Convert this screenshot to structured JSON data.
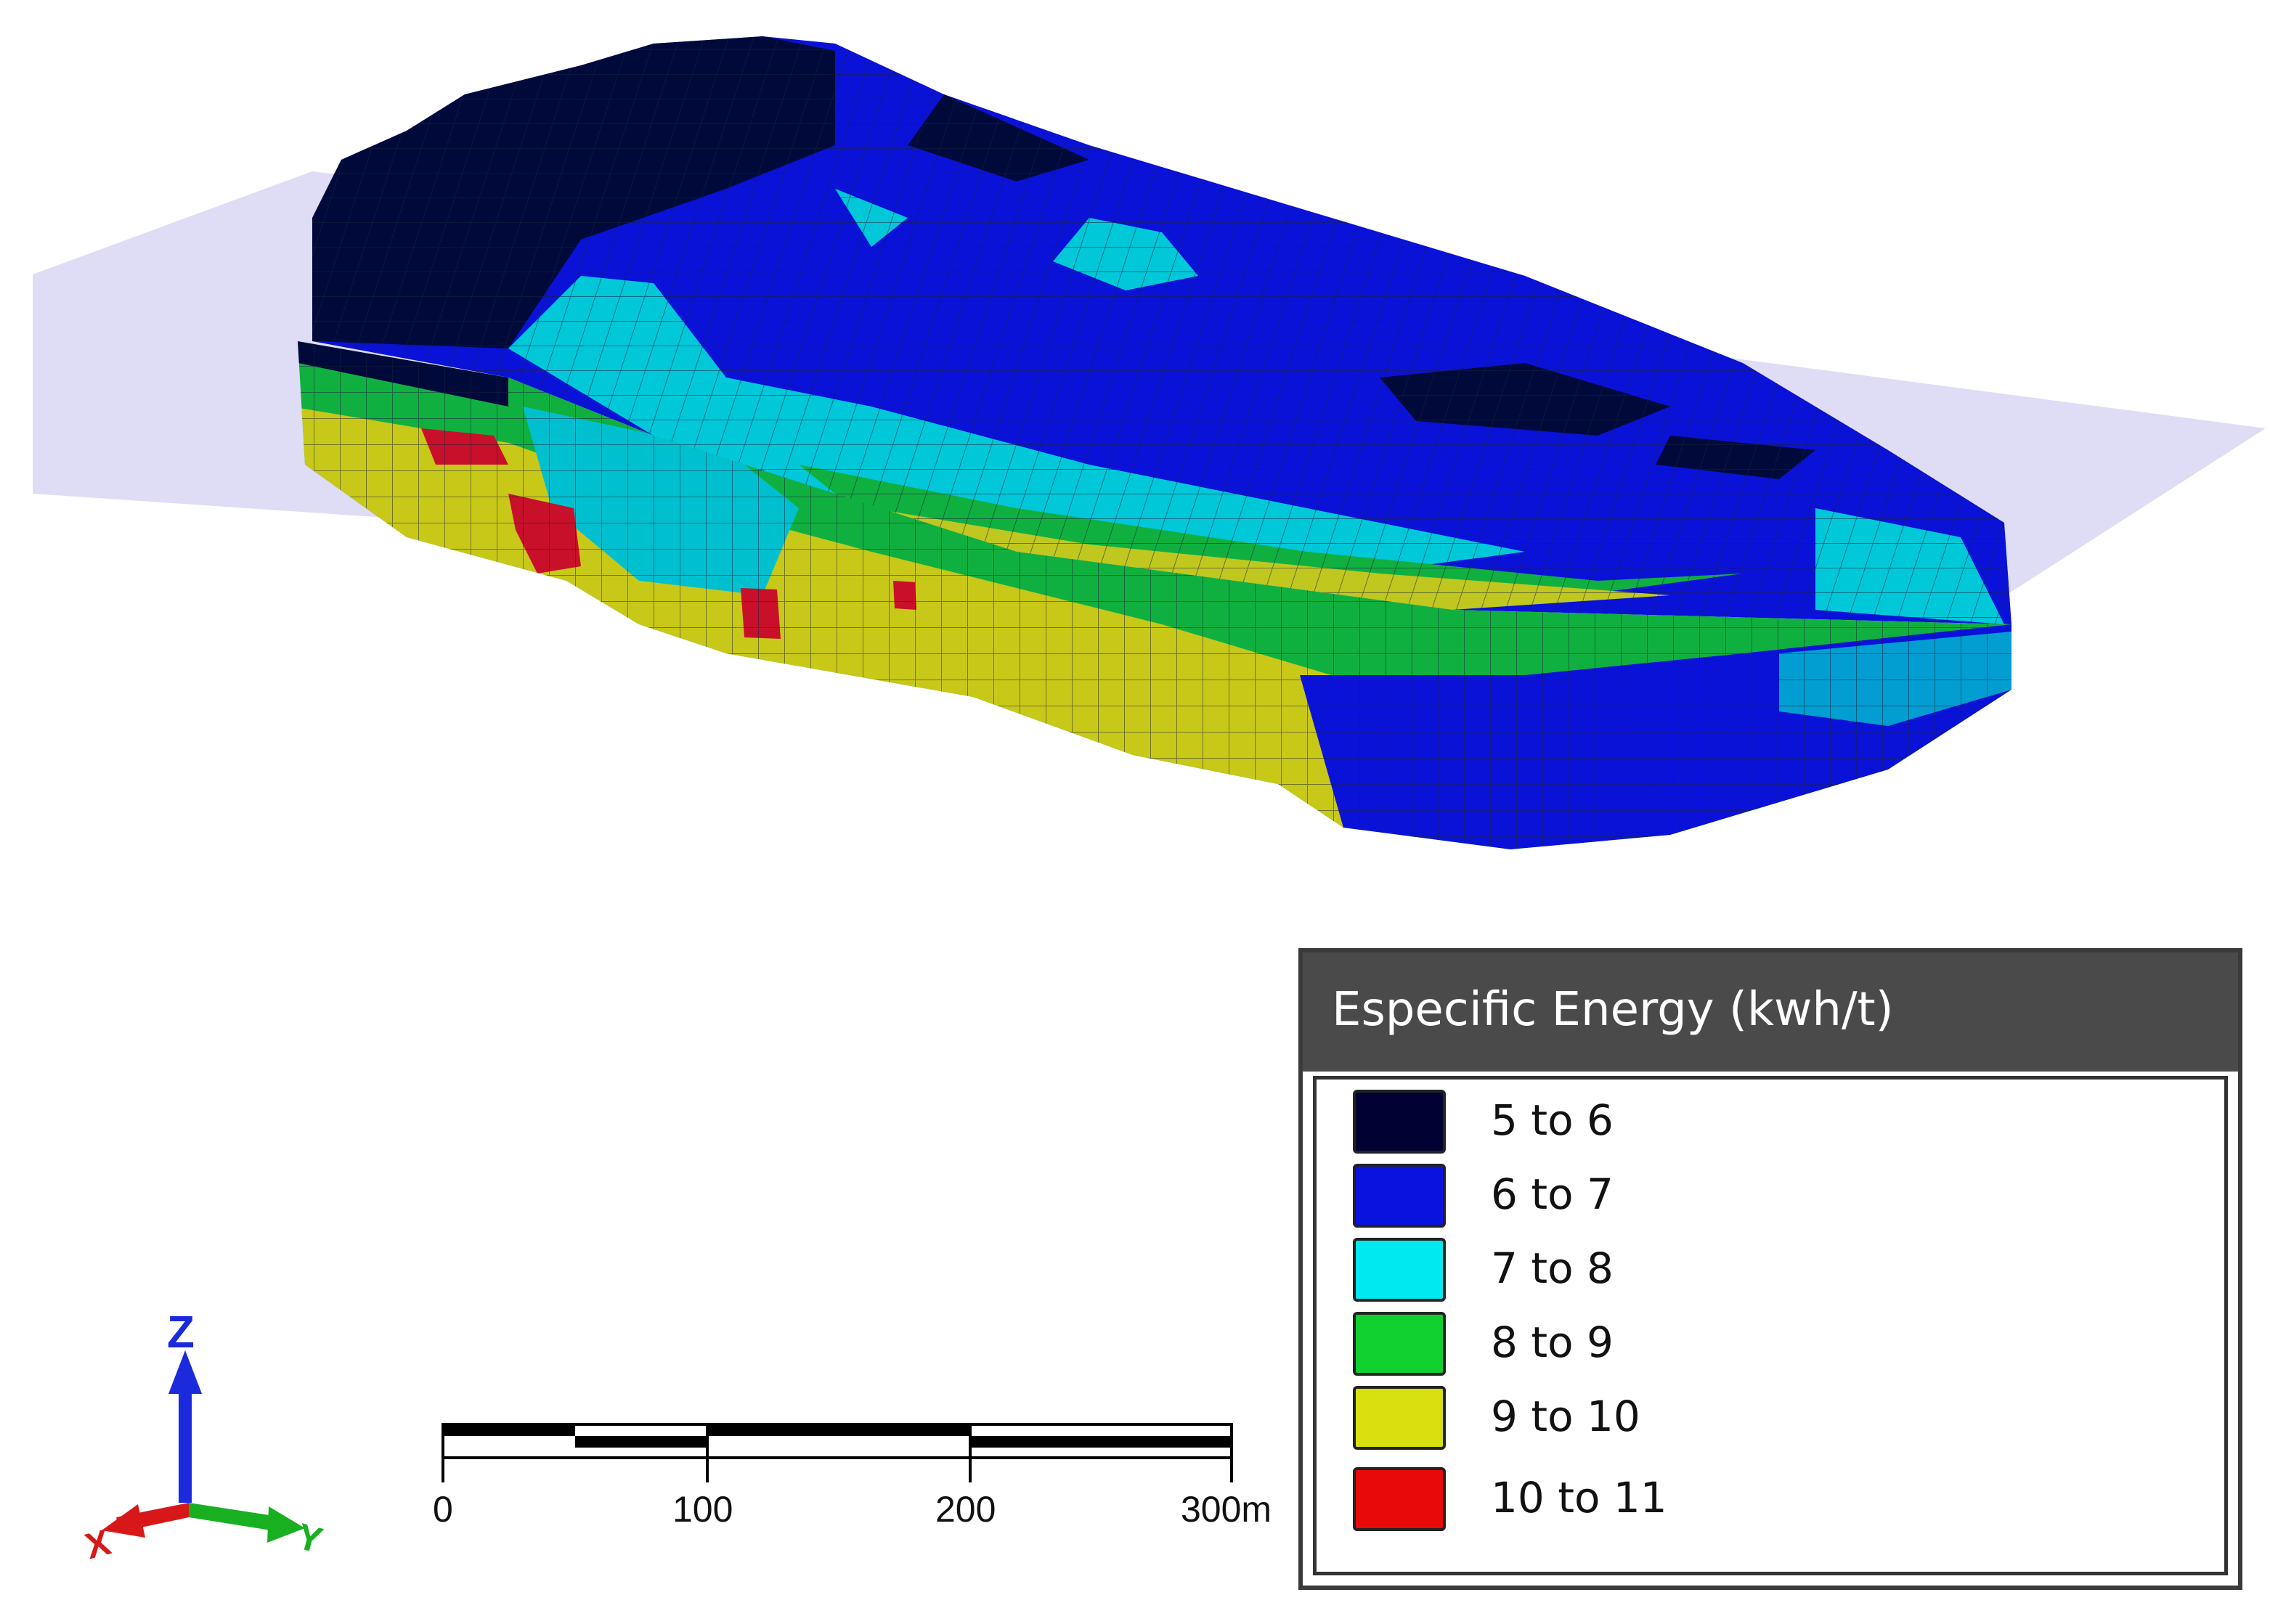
{
  "legend": {
    "title": "Especific Energy (kwh/t)",
    "items": [
      {
        "label": "5 to 6",
        "color": "#000033"
      },
      {
        "label": "6 to 7",
        "color": "#0a12e0"
      },
      {
        "label": "7 to 8",
        "color": "#00e8f0"
      },
      {
        "label": "8 to 9",
        "color": "#10d030"
      },
      {
        "label": "9 to 10",
        "color": "#d8e010"
      },
      {
        "label": "10 to 11",
        "color": "#e80a0a"
      }
    ]
  },
  "scale_bar": {
    "ticks": [
      "0",
      "100",
      "200",
      "300m"
    ]
  },
  "axes": {
    "z_label": "Z",
    "x_label": "X",
    "y_label": "Y"
  },
  "colors": {
    "plane": "#dcd8f4",
    "block_grid": "#1a1f3a"
  }
}
